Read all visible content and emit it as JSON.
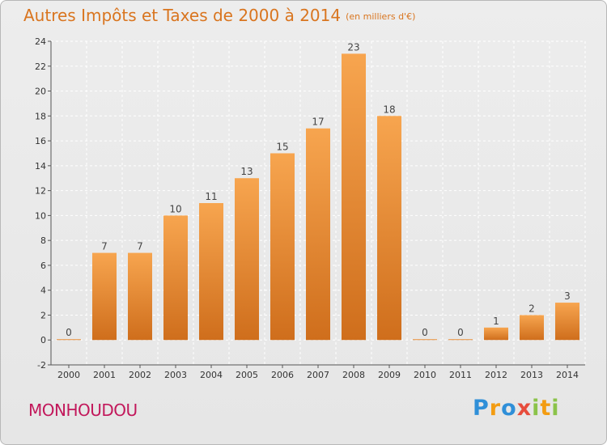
{
  "header": {
    "title": "Autres Impôts et Taxes de 2000 à 2014",
    "unit": "(en milliers d'€)"
  },
  "footer": {
    "town": "MONHOUDOU",
    "logo": "Proxiti"
  },
  "colors": {
    "bar_light": "#f7a54f",
    "bar_dark": "#cf6e1c",
    "title": "#d9751f",
    "town": "#c2185b",
    "grid": "#ffffff"
  },
  "chart_data": {
    "type": "bar",
    "title": "Autres Impôts et Taxes de 2000 à 2014",
    "subtitle": "(en milliers d'€)",
    "xlabel": "",
    "ylabel": "",
    "categories": [
      "2000",
      "2001",
      "2002",
      "2003",
      "2004",
      "2005",
      "2006",
      "2007",
      "2008",
      "2009",
      "2010",
      "2011",
      "2012",
      "2013",
      "2014"
    ],
    "values": [
      0,
      7,
      7,
      10,
      11,
      13,
      15,
      17,
      23,
      18,
      0,
      0,
      1,
      2,
      3
    ],
    "ylim": [
      -2,
      24
    ],
    "yticks": [
      -2,
      0,
      2,
      4,
      6,
      8,
      10,
      12,
      14,
      16,
      18,
      20,
      22,
      24
    ],
    "grid": "horizontal dashed",
    "legend": "none"
  }
}
